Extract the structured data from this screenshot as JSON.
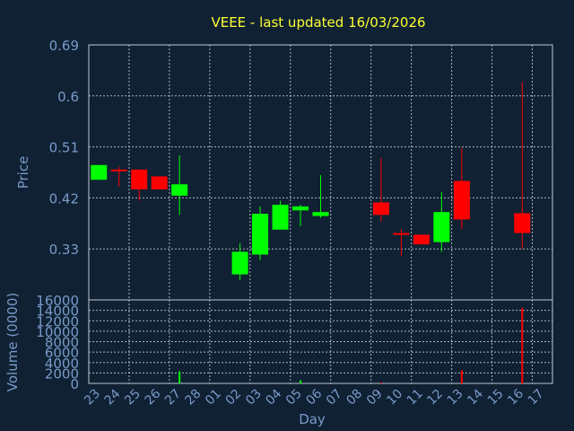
{
  "chart_data": [
    {
      "type": "candlestick",
      "title": "VEEE - last updated 16/03/2026",
      "ylabel": "Price",
      "xlabel": "Day",
      "ylim": [
        0.24,
        0.69
      ],
      "yticks": [
        "0.69",
        "0.6",
        "0.51",
        "0.42",
        "0.33"
      ],
      "ytick_values": [
        0.69,
        0.6,
        0.51,
        0.42,
        0.33
      ],
      "categories": [
        "23",
        "24",
        "25",
        "26",
        "27",
        "28",
        "01",
        "02",
        "03",
        "04",
        "05",
        "06",
        "07",
        "08",
        "09",
        "10",
        "11",
        "12",
        "13",
        "14",
        "15",
        "16",
        "17"
      ],
      "grid": true,
      "up_color": "#00ff00",
      "down_color": "#ff0000",
      "candles": [
        {
          "day": "23",
          "open": 0.452,
          "close": 0.478,
          "high": 0.478,
          "low": 0.452
        },
        {
          "day": "24",
          "open": 0.47,
          "close": 0.468,
          "high": 0.475,
          "low": 0.44
        },
        {
          "day": "25",
          "open": 0.47,
          "close": 0.435,
          "high": 0.47,
          "low": 0.415
        },
        {
          "day": "26",
          "open": 0.458,
          "close": 0.435,
          "high": 0.458,
          "low": 0.435
        },
        {
          "day": "27",
          "open": 0.424,
          "close": 0.444,
          "high": 0.495,
          "low": 0.39
        },
        {
          "day": "02",
          "open": 0.285,
          "close": 0.325,
          "high": 0.34,
          "low": 0.275
        },
        {
          "day": "03",
          "open": 0.32,
          "close": 0.392,
          "high": 0.405,
          "low": 0.31
        },
        {
          "day": "04",
          "open": 0.364,
          "close": 0.408,
          "high": 0.415,
          "low": 0.364
        },
        {
          "day": "05",
          "open": 0.398,
          "close": 0.405,
          "high": 0.408,
          "low": 0.37
        },
        {
          "day": "06",
          "open": 0.388,
          "close": 0.395,
          "high": 0.46,
          "low": 0.385
        },
        {
          "day": "09",
          "open": 0.412,
          "close": 0.39,
          "high": 0.49,
          "low": 0.378
        },
        {
          "day": "10",
          "open": 0.358,
          "close": 0.357,
          "high": 0.365,
          "low": 0.318
        },
        {
          "day": "11",
          "open": 0.355,
          "close": 0.338,
          "high": 0.355,
          "low": 0.338
        },
        {
          "day": "12",
          "open": 0.342,
          "close": 0.395,
          "high": 0.43,
          "low": 0.325
        },
        {
          "day": "13",
          "open": 0.45,
          "close": 0.382,
          "high": 0.508,
          "low": 0.365
        },
        {
          "day": "16",
          "open": 0.393,
          "close": 0.358,
          "high": 0.625,
          "low": 0.33
        }
      ]
    },
    {
      "type": "bar",
      "ylabel": "Volume (0000)",
      "ylim": [
        0,
        16000
      ],
      "yticks": [
        "16000",
        "14000",
        "12000",
        "10000",
        "8000",
        "6000",
        "4000",
        "2000",
        "0"
      ],
      "ytick_values": [
        16000,
        14000,
        12000,
        10000,
        8000,
        6000,
        4000,
        2000,
        0
      ],
      "volumes": [
        {
          "day": "27",
          "value": 2300,
          "color": "#00ff00"
        },
        {
          "day": "05",
          "value": 600,
          "color": "#00ff00"
        },
        {
          "day": "09",
          "value": 200,
          "color": "#ff0000"
        },
        {
          "day": "13",
          "value": 2500,
          "color": "#ff0000"
        },
        {
          "day": "16",
          "value": 14500,
          "color": "#ff0000"
        }
      ]
    }
  ]
}
